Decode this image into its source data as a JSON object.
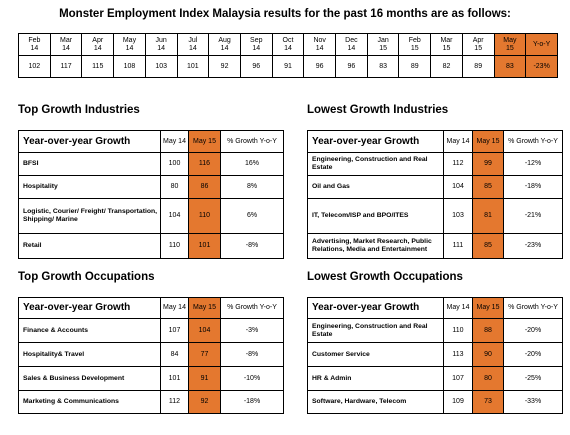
{
  "title": "Monster Employment Index Malaysia results for the past 16 months are as follows:",
  "index_table": {
    "months": [
      {
        "month": "Feb",
        "year": "14"
      },
      {
        "month": "Mar",
        "year": "14"
      },
      {
        "month": "Apr",
        "year": "14"
      },
      {
        "month": "May",
        "year": "14"
      },
      {
        "month": "Jun",
        "year": "14"
      },
      {
        "month": "Jul",
        "year": "14"
      },
      {
        "month": "Aug",
        "year": "14"
      },
      {
        "month": "Sep",
        "year": "14"
      },
      {
        "month": "Oct",
        "year": "14"
      },
      {
        "month": "Nov",
        "year": "14"
      },
      {
        "month": "Dec",
        "year": "14"
      },
      {
        "month": "Jan",
        "year": "15"
      },
      {
        "month": "Feb",
        "year": "15"
      },
      {
        "month": "Mar",
        "year": "15"
      },
      {
        "month": "Apr",
        "year": "15"
      },
      {
        "month": "May",
        "year": "15"
      }
    ],
    "yoy_header": "Y-o-Y",
    "values": [
      "102",
      "117",
      "115",
      "108",
      "103",
      "101",
      "92",
      "96",
      "91",
      "96",
      "96",
      "83",
      "89",
      "82",
      "89",
      "83"
    ],
    "yoy": "-23%"
  },
  "sections": [
    {
      "title": "Top Growth Industries",
      "header": {
        "label": "Year-over-year Growth",
        "col1": "May 14",
        "col2": "May 15",
        "col3": "% Growth Y-o-Y"
      },
      "rows": [
        {
          "name": "BFSI",
          "may14": "100",
          "may15": "116",
          "growth": "16%"
        },
        {
          "name": "Hospitality",
          "may14": "80",
          "may15": "86",
          "growth": "8%"
        },
        {
          "name": "Logistic, Courier/ Freight/ Transportation, Shipping/ Marine",
          "may14": "104",
          "may15": "110",
          "growth": "6%"
        },
        {
          "name": "Retail",
          "may14": "110",
          "may15": "101",
          "growth": "-8%"
        }
      ]
    },
    {
      "title": "Lowest Growth Industries",
      "header": {
        "label": "Year-over-year Growth",
        "col1": "May 14",
        "col2": "May 15",
        "col3": "% Growth Y-o-Y"
      },
      "rows": [
        {
          "name": "Engineering, Construction and Real Estate",
          "may14": "112",
          "may15": "99",
          "growth": "-12%"
        },
        {
          "name": "Oil and Gas",
          "may14": "104",
          "may15": "85",
          "growth": "-18%"
        },
        {
          "name": "IT, Telecom/ISP and BPO/ITES",
          "may14": "103",
          "may15": "81",
          "growth": "-21%"
        },
        {
          "name": "Advertising, Market Research, Public Relations, Media and Entertainment",
          "may14": "111",
          "may15": "85",
          "growth": "-23%"
        }
      ]
    },
    {
      "title": "Top Growth Occupations",
      "header": {
        "label": "Year-over-year Growth",
        "col1": "May 14",
        "col2": "May 15",
        "col3": "% Growth Y-o-Y"
      },
      "rows": [
        {
          "name": "Finance & Accounts",
          "may14": "107",
          "may15": "104",
          "growth": "-3%"
        },
        {
          "name": "Hospitality& Travel",
          "may14": "84",
          "may15": "77",
          "growth": "-8%"
        },
        {
          "name": "Sales & Business Development",
          "may14": "101",
          "may15": "91",
          "growth": "-10%"
        },
        {
          "name": "Marketing & Communications",
          "may14": "112",
          "may15": "92",
          "growth": "-18%"
        }
      ]
    },
    {
      "title": "Lowest Growth Occupations",
      "header": {
        "label": "Year-over-year Growth",
        "col1": "May 14",
        "col2": "May 15",
        "col3": "% Growth Y-o-Y"
      },
      "rows": [
        {
          "name": "Engineering, Construction and Real Estate",
          "may14": "110",
          "may15": "88",
          "growth": "-20%"
        },
        {
          "name": "Customer Service",
          "may14": "113",
          "may15": "90",
          "growth": "-20%"
        },
        {
          "name": "HR & Admin",
          "may14": "107",
          "may15": "80",
          "growth": "-25%"
        },
        {
          "name": "Software, Hardware, Telecom",
          "may14": "109",
          "may15": "73",
          "growth": "-33%"
        }
      ]
    }
  ]
}
